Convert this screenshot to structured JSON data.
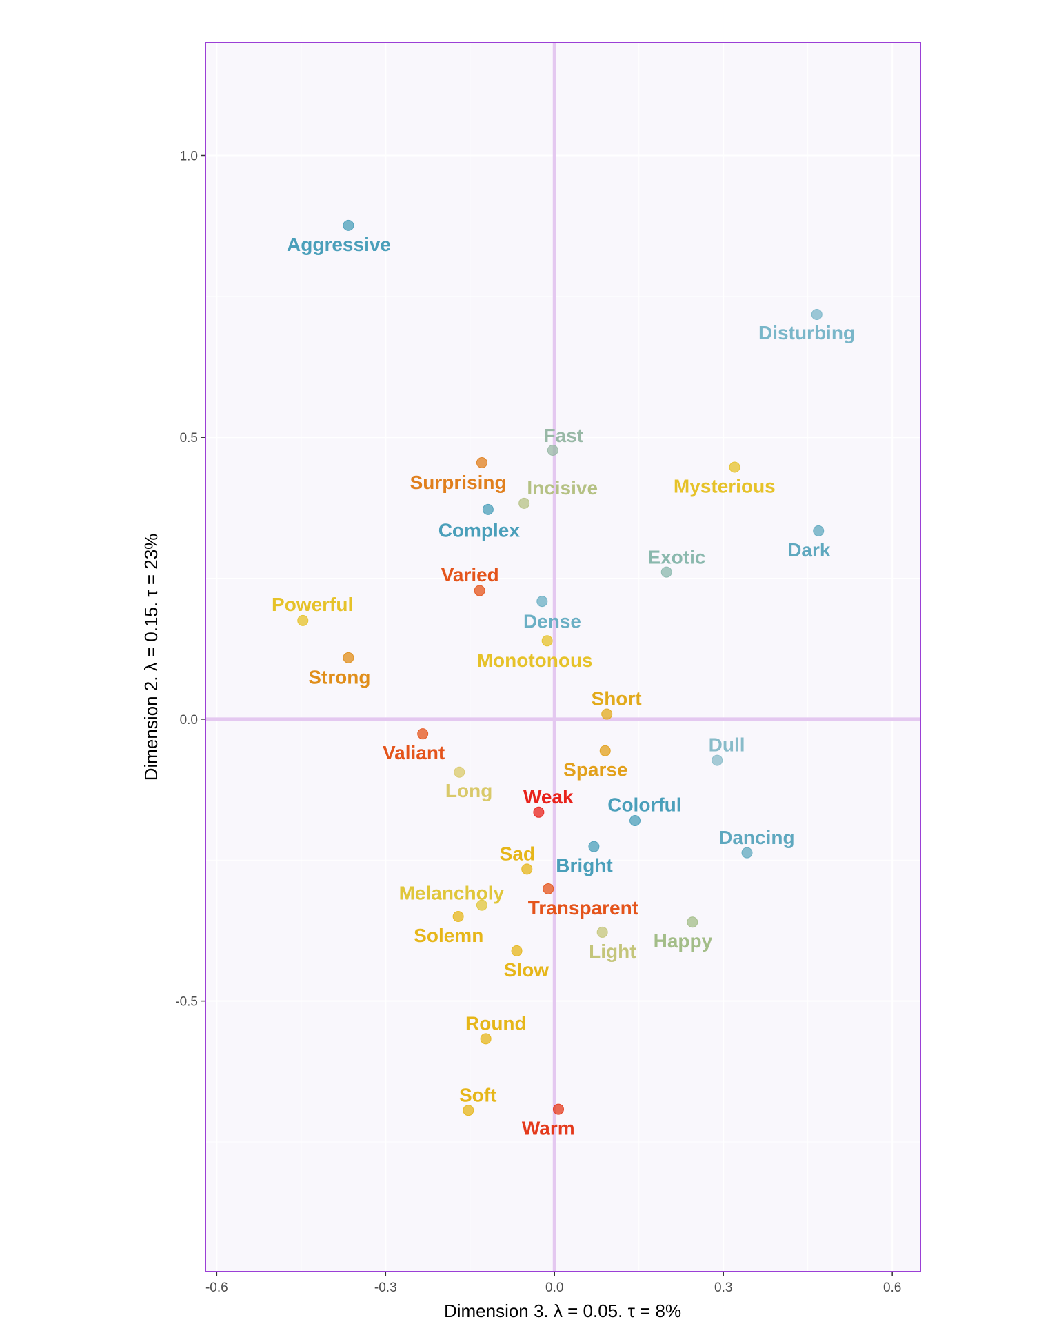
{
  "chart_data": {
    "type": "scatter",
    "xlabel": "Dimension 3.   λ = 0.05.  τ = 8%",
    "ylabel": "Dimension 2.   λ = 0.15.  τ = 23%",
    "xlim": [
      -0.62,
      0.65
    ],
    "ylim": [
      -0.98,
      1.2
    ],
    "x_ticks": [
      {
        "value": -0.6,
        "label": "-0.6"
      },
      {
        "value": -0.3,
        "label": "-0.3"
      },
      {
        "value": 0.0,
        "label": "0.0"
      },
      {
        "value": 0.3,
        "label": "0.3"
      },
      {
        "value": 0.6,
        "label": "0.6"
      }
    ],
    "y_ticks": [
      {
        "value": 1.0,
        "label": "1.0"
      },
      {
        "value": 0.5,
        "label": "0.5"
      },
      {
        "value": 0.0,
        "label": "0.0"
      },
      {
        "value": -0.5,
        "label": "-0.5"
      }
    ],
    "grid": true,
    "legend": "none",
    "colors": {
      "background": "#f9f7fc",
      "frame": "#9b3fd6",
      "zero_lines": "#e4c8f0",
      "grid": "#ffffff"
    },
    "points": [
      {
        "label": "Aggressive",
        "x": -0.366,
        "y": 0.876,
        "color": "#4a9fba",
        "lx": -0.383,
        "ly": 0.843
      },
      {
        "label": "Disturbing",
        "x": 0.466,
        "y": 0.718,
        "color": "#79b6c9",
        "lx": 0.448,
        "ly": 0.686
      },
      {
        "label": "Fast",
        "x": -0.003,
        "y": 0.477,
        "color": "#98b8a6",
        "lx": 0.016,
        "ly": 0.504
      },
      {
        "label": "Surprising",
        "x": -0.129,
        "y": 0.455,
        "color": "#e07f1d",
        "lx": -0.171,
        "ly": 0.421
      },
      {
        "label": "Incisive",
        "x": -0.054,
        "y": 0.383,
        "color": "#b5c184",
        "lx": 0.014,
        "ly": 0.411
      },
      {
        "label": "Mysterious",
        "x": 0.32,
        "y": 0.447,
        "color": "#e6c229",
        "lx": 0.302,
        "ly": 0.414
      },
      {
        "label": "Complex",
        "x": -0.118,
        "y": 0.372,
        "color": "#4a9fba",
        "lx": -0.134,
        "ly": 0.336
      },
      {
        "label": "Dark",
        "x": 0.469,
        "y": 0.334,
        "color": "#5fa8bf",
        "lx": 0.452,
        "ly": 0.301
      },
      {
        "label": "Exotic",
        "x": 0.199,
        "y": 0.261,
        "color": "#8ab8ad",
        "lx": 0.217,
        "ly": 0.288
      },
      {
        "label": "Varied",
        "x": -0.133,
        "y": 0.228,
        "color": "#e4541b",
        "lx": -0.15,
        "ly": 0.257
      },
      {
        "label": "Powerful",
        "x": -0.447,
        "y": 0.175,
        "color": "#e6c229",
        "lx": -0.43,
        "ly": 0.204
      },
      {
        "label": "Dense",
        "x": -0.022,
        "y": 0.209,
        "color": "#6aafc4",
        "lx": -0.004,
        "ly": 0.174
      },
      {
        "label": "Monotonous",
        "x": -0.013,
        "y": 0.139,
        "color": "#e6c229",
        "lx": -0.035,
        "ly": 0.105
      },
      {
        "label": "Strong",
        "x": -0.366,
        "y": 0.109,
        "color": "#e08e1a",
        "lx": -0.382,
        "ly": 0.075
      },
      {
        "label": "Short",
        "x": 0.093,
        "y": 0.009,
        "color": "#e2aa1b",
        "lx": 0.11,
        "ly": 0.037
      },
      {
        "label": "Valiant",
        "x": -0.234,
        "y": -0.026,
        "color": "#e4541b",
        "lx": -0.25,
        "ly": -0.059
      },
      {
        "label": "Sparse",
        "x": 0.09,
        "y": -0.056,
        "color": "#e2a01b",
        "lx": 0.073,
        "ly": -0.089
      },
      {
        "label": "Dull",
        "x": 0.289,
        "y": -0.073,
        "color": "#88bbc9",
        "lx": 0.306,
        "ly": -0.045
      },
      {
        "label": "Long",
        "x": -0.169,
        "y": -0.094,
        "color": "#d9c96a",
        "lx": -0.152,
        "ly": -0.126
      },
      {
        "label": "Weak",
        "x": -0.028,
        "y": -0.165,
        "color": "#e8221b",
        "lx": -0.011,
        "ly": -0.137
      },
      {
        "label": "Colorful",
        "x": 0.143,
        "y": -0.18,
        "color": "#4a9fba",
        "lx": 0.16,
        "ly": -0.151
      },
      {
        "label": "Dancing",
        "x": 0.342,
        "y": -0.237,
        "color": "#5fa8bf",
        "lx": 0.359,
        "ly": -0.209
      },
      {
        "label": "Bright",
        "x": 0.07,
        "y": -0.226,
        "color": "#4a9fba",
        "lx": 0.053,
        "ly": -0.259
      },
      {
        "label": "Sad",
        "x": -0.049,
        "y": -0.266,
        "color": "#e6b619",
        "lx": -0.066,
        "ly": -0.238
      },
      {
        "label": "Melancholy",
        "x": -0.129,
        "y": -0.33,
        "color": "#e0c63a",
        "lx": -0.183,
        "ly": -0.308
      },
      {
        "label": "Transparent",
        "x": -0.011,
        "y": -0.301,
        "color": "#e4541b",
        "lx": 0.051,
        "ly": -0.334
      },
      {
        "label": "Solemn",
        "x": -0.171,
        "y": -0.35,
        "color": "#e6b619",
        "lx": -0.188,
        "ly": -0.383
      },
      {
        "label": "Happy",
        "x": 0.245,
        "y": -0.36,
        "color": "#a3bd88",
        "lx": 0.228,
        "ly": -0.393
      },
      {
        "label": "Light",
        "x": 0.085,
        "y": -0.378,
        "color": "#c4c57a",
        "lx": 0.103,
        "ly": -0.411
      },
      {
        "label": "Slow",
        "x": -0.067,
        "y": -0.411,
        "color": "#e6b619",
        "lx": -0.05,
        "ly": -0.444
      },
      {
        "label": "Round",
        "x": -0.122,
        "y": -0.567,
        "color": "#e6b619",
        "lx": -0.104,
        "ly": -0.539
      },
      {
        "label": "Soft",
        "x": -0.153,
        "y": -0.694,
        "color": "#e6b619",
        "lx": -0.136,
        "ly": -0.666
      },
      {
        "label": "Warm",
        "x": 0.007,
        "y": -0.692,
        "color": "#e4391b",
        "lx": -0.011,
        "ly": -0.725
      }
    ]
  }
}
